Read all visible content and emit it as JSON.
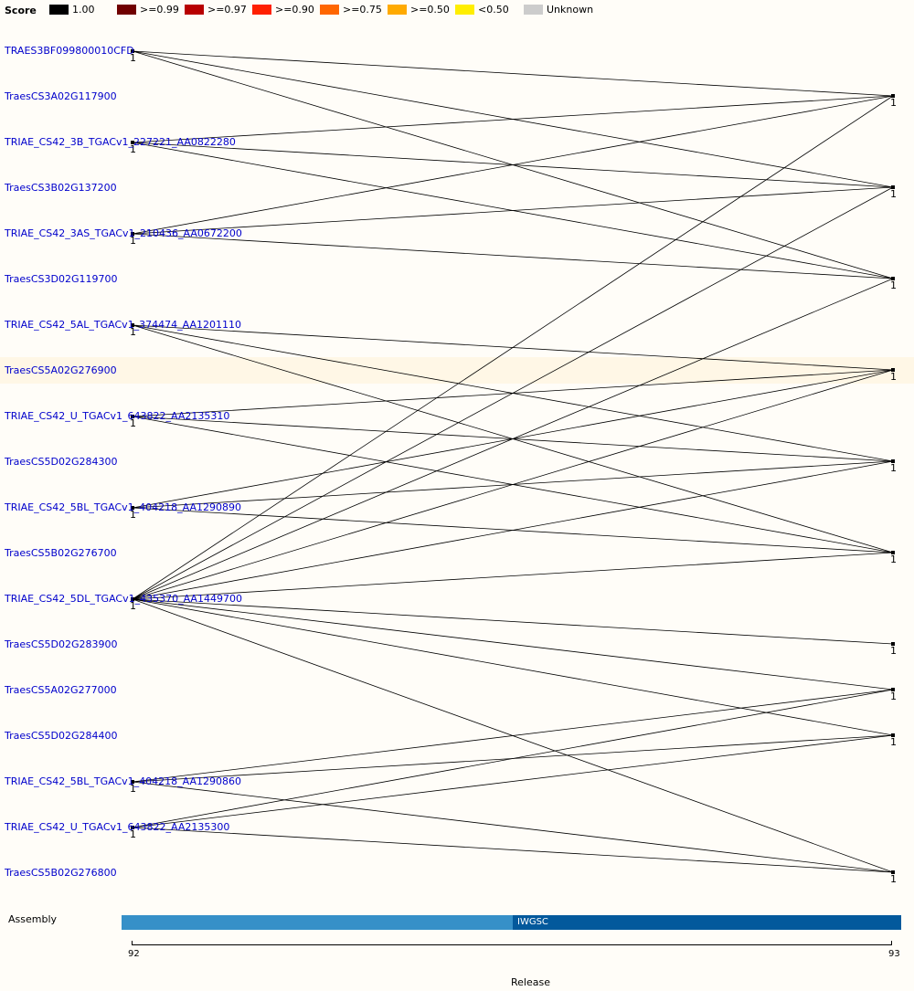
{
  "legend": {
    "title": "Score",
    "items": [
      {
        "label": "1.00",
        "color": "#000000"
      },
      {
        "label": ">=0.99",
        "color": "#700000"
      },
      {
        "label": ">=0.97",
        "color": "#b80000"
      },
      {
        "label": ">=0.90",
        "color": "#ff2000"
      },
      {
        "label": ">=0.75",
        "color": "#ff6600"
      },
      {
        "label": ">=0.50",
        "color": "#ffaa00"
      },
      {
        "label": "<0.50",
        "color": "#ffee00"
      },
      {
        "label": "Unknown",
        "color": "#cccccc"
      }
    ]
  },
  "genes": [
    {
      "id": "TRAES3BF099800010CFD",
      "release92": true
    },
    {
      "id": "TraesCS3A02G117900",
      "release92": false
    },
    {
      "id": "TRIAE_CS42_3B_TGACv1_227221_AA0822280",
      "release92": true
    },
    {
      "id": "TraesCS3B02G137200",
      "release92": false
    },
    {
      "id": "TRIAE_CS42_3AS_TGACv1_210436_AA0672200",
      "release92": true
    },
    {
      "id": "TraesCS3D02G119700",
      "release92": false
    },
    {
      "id": "TRIAE_CS42_5AL_TGACv1_374474_AA1201110",
      "release92": true
    },
    {
      "id": "TraesCS5A02G276900",
      "release92": false,
      "highlighted": true
    },
    {
      "id": "TRIAE_CS42_U_TGACv1_643822_AA2135310",
      "release92": true
    },
    {
      "id": "TraesCS5D02G284300",
      "release92": false
    },
    {
      "id": "TRIAE_CS42_5BL_TGACv1_404218_AA1290890",
      "release92": true
    },
    {
      "id": "TraesCS5B02G276700",
      "release92": false
    },
    {
      "id": "TRIAE_CS42_5DL_TGACv1_435370_AA1449700",
      "release92": true
    },
    {
      "id": "TraesCS5D02G283900",
      "release92": false
    },
    {
      "id": "TraesCS5A02G277000",
      "release92": false
    },
    {
      "id": "TraesCS5D02G284400",
      "release92": false
    },
    {
      "id": "TRIAE_CS42_5BL_TGACv1_404218_AA1290860",
      "release92": true
    },
    {
      "id": "TRIAE_CS42_U_TGACv1_643822_AA2135300",
      "release92": true
    },
    {
      "id": "TraesCS5B02G276800",
      "release92": false
    }
  ],
  "links": [
    {
      "from": 0,
      "to": 1,
      "score": "1.00"
    },
    {
      "from": 0,
      "to": 3,
      "score": "1.00"
    },
    {
      "from": 0,
      "to": 5,
      "score": "1.00"
    },
    {
      "from": 2,
      "to": 1,
      "score": "1.00"
    },
    {
      "from": 2,
      "to": 3,
      "score": "1.00"
    },
    {
      "from": 2,
      "to": 5,
      "score": "1.00"
    },
    {
      "from": 4,
      "to": 1,
      "score": "1.00"
    },
    {
      "from": 4,
      "to": 3,
      "score": "1.00"
    },
    {
      "from": 4,
      "to": 5,
      "score": "1.00"
    },
    {
      "from": 6,
      "to": 7,
      "score": "1.00"
    },
    {
      "from": 6,
      "to": 9,
      "score": "1.00"
    },
    {
      "from": 6,
      "to": 11,
      "score": "1.00"
    },
    {
      "from": 8,
      "to": 7,
      "score": "1.00"
    },
    {
      "from": 8,
      "to": 9,
      "score": "1.00"
    },
    {
      "from": 8,
      "to": 11,
      "score": "1.00"
    },
    {
      "from": 10,
      "to": 7,
      "score": "1.00"
    },
    {
      "from": 10,
      "to": 9,
      "score": "1.00"
    },
    {
      "from": 10,
      "to": 11,
      "score": "1.00"
    },
    {
      "from": 12,
      "to": 1,
      "score": "1.00"
    },
    {
      "from": 12,
      "to": 3,
      "score": "1.00"
    },
    {
      "from": 12,
      "to": 5,
      "score": "1.00"
    },
    {
      "from": 12,
      "to": 7,
      "score": "1.00"
    },
    {
      "from": 12,
      "to": 9,
      "score": "1.00"
    },
    {
      "from": 12,
      "to": 11,
      "score": "1.00"
    },
    {
      "from": 12,
      "to": 13,
      "score": "1.00"
    },
    {
      "from": 12,
      "to": 14,
      "score": "1.00"
    },
    {
      "from": 12,
      "to": 15,
      "score": "1.00"
    },
    {
      "from": 12,
      "to": 18,
      "score": "1.00"
    },
    {
      "from": 16,
      "to": 14,
      "score": "1.00"
    },
    {
      "from": 16,
      "to": 15,
      "score": "1.00"
    },
    {
      "from": 16,
      "to": 18,
      "score": "1.00"
    },
    {
      "from": 17,
      "to": 14,
      "score": "1.00"
    },
    {
      "from": 17,
      "to": 15,
      "score": "1.00"
    },
    {
      "from": 17,
      "to": 18,
      "score": "1.00"
    }
  ],
  "node_count_label": "1",
  "assembly": {
    "label": "Assembly",
    "right_segment_name": "IWGSC"
  },
  "release": {
    "label": "Release",
    "ticks": [
      "92",
      "93"
    ]
  }
}
